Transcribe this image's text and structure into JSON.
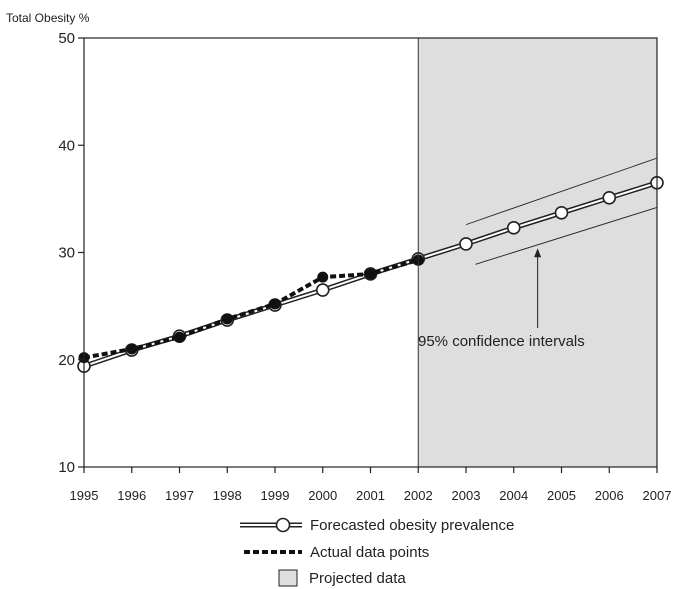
{
  "chart_data": {
    "type": "line",
    "ylabel": "Total Obesity %",
    "xlabel": "",
    "title": "",
    "xlim": [
      1995,
      2007
    ],
    "ylim": [
      10,
      50
    ],
    "x_ticks": [
      1995,
      1996,
      1997,
      1998,
      1999,
      2000,
      2001,
      2002,
      2003,
      2004,
      2005,
      2006,
      2007
    ],
    "y_ticks": [
      10,
      20,
      30,
      40,
      50
    ],
    "grid": false,
    "legend_position": "bottom-center",
    "projected_region": {
      "x_start": 2002,
      "x_end": 2007,
      "color": "#dedede"
    },
    "series": [
      {
        "name": "Forecasted obesity prevalence",
        "style": "double-line-open-circles",
        "x": [
          1995,
          1996,
          1997,
          1998,
          1999,
          2000,
          2001,
          2002,
          2003,
          2004,
          2005,
          2006,
          2007
        ],
        "y": [
          19.4,
          20.9,
          22.2,
          23.7,
          25.1,
          26.5,
          28.0,
          29.4,
          30.8,
          32.3,
          33.7,
          35.1,
          36.5
        ]
      },
      {
        "name": "Actual data points",
        "style": "dashed-filled-circles",
        "x": [
          1995,
          1996,
          1997,
          1998,
          1999,
          2000,
          2001,
          2002
        ],
        "y": [
          20.2,
          21.0,
          22.1,
          23.8,
          25.2,
          27.7,
          28.0,
          29.3
        ]
      }
    ],
    "confidence_interval": {
      "upper": {
        "x": [
          2003,
          2007
        ],
        "y": [
          32.6,
          38.8
        ]
      },
      "lower": {
        "x": [
          2003.2,
          2007
        ],
        "y": [
          28.9,
          34.2
        ]
      }
    },
    "annotations": [
      {
        "text": "95% confidence intervals",
        "arrow_to_x": 2004.5,
        "arrow_to_y": 30.4
      }
    ],
    "legend": [
      {
        "label": "Forecasted obesity prevalence",
        "swatch": "double-line-open-circle"
      },
      {
        "label": "Actual data points",
        "swatch": "dashed"
      },
      {
        "label": "Projected data",
        "swatch": "gray-box"
      }
    ]
  }
}
